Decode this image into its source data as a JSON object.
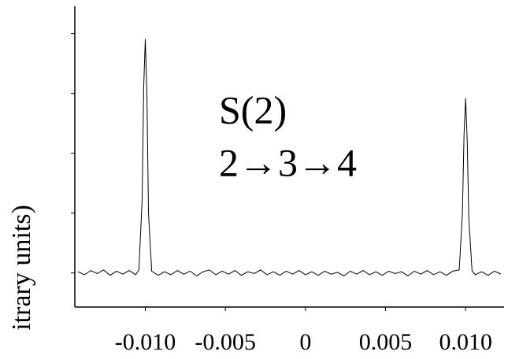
{
  "chart_data": {
    "type": "line",
    "y_label": "itrary units)",
    "annotations": [
      "S(2)",
      "2→3→4"
    ],
    "color": "#000000",
    "x": [
      -0.0142,
      -0.0138,
      -0.0134,
      -0.013,
      -0.0126,
      -0.0122,
      -0.0118,
      -0.0114,
      -0.011,
      -0.0106,
      -0.0104,
      -0.0102,
      -0.0101,
      -0.01,
      -0.0099,
      -0.0098,
      -0.0096,
      -0.0092,
      -0.0088,
      -0.0084,
      -0.008,
      -0.0076,
      -0.0072,
      -0.0068,
      -0.0064,
      -0.006,
      -0.0056,
      -0.0052,
      -0.0048,
      -0.0044,
      -0.004,
      -0.0036,
      -0.0032,
      -0.0028,
      -0.0024,
      -0.002,
      -0.0016,
      -0.0012,
      -0.0008,
      -0.0004,
      0,
      0.0004,
      0.0008,
      0.0012,
      0.0016,
      0.002,
      0.0024,
      0.0028,
      0.0032,
      0.0036,
      0.004,
      0.0044,
      0.0048,
      0.0052,
      0.0056,
      0.006,
      0.0064,
      0.0068,
      0.0072,
      0.0076,
      0.008,
      0.0084,
      0.0088,
      0.0092,
      0.0096,
      0.0098,
      0.0099,
      0.01,
      0.0101,
      0.0102,
      0.0104,
      0.0106,
      0.011,
      0.0114,
      0.0118,
      0.0122
    ],
    "values": [
      0.02,
      -0.03,
      0.04,
      -0.01,
      0.05,
      -0.04,
      0.03,
      -0.02,
      0.04,
      -0.03,
      0.05,
      1.2,
      3.1,
      3.91,
      3.0,
      1.0,
      0.03,
      -0.04,
      0.02,
      -0.03,
      0.04,
      -0.02,
      0.03,
      -0.05,
      0.02,
      0.05,
      -0.03,
      0.03,
      -0.02,
      0.04,
      -0.04,
      0.02,
      -0.01,
      0.05,
      -0.03,
      0.02,
      -0.04,
      0.03,
      -0.02,
      0.04,
      -0.03,
      0.02,
      -0.04,
      0.03,
      -0.02,
      0.01,
      -0.05,
      0.03,
      -0.02,
      0.04,
      -0.03,
      0.02,
      -0.04,
      0.03,
      -0.01,
      0.02,
      -0.05,
      0.03,
      -0.02,
      0.04,
      -0.03,
      0.02,
      -0.04,
      0.03,
      0.05,
      1.0,
      2.3,
      2.92,
      2.2,
      0.9,
      0.04,
      -0.03,
      0.02,
      -0.04,
      0.03,
      -0.02
    ],
    "xlim": [
      -0.0144,
      0.0124
    ],
    "xticks": [
      {
        "value": -0.01,
        "label": "-0.010"
      },
      -0.005,
      0,
      0.005,
      {
        "value": 0.01,
        "label": "0.010"
      }
    ],
    "ylim": [
      -0.57,
      4.43
    ],
    "yticks": [
      0,
      1,
      2,
      3,
      4
    ]
  }
}
